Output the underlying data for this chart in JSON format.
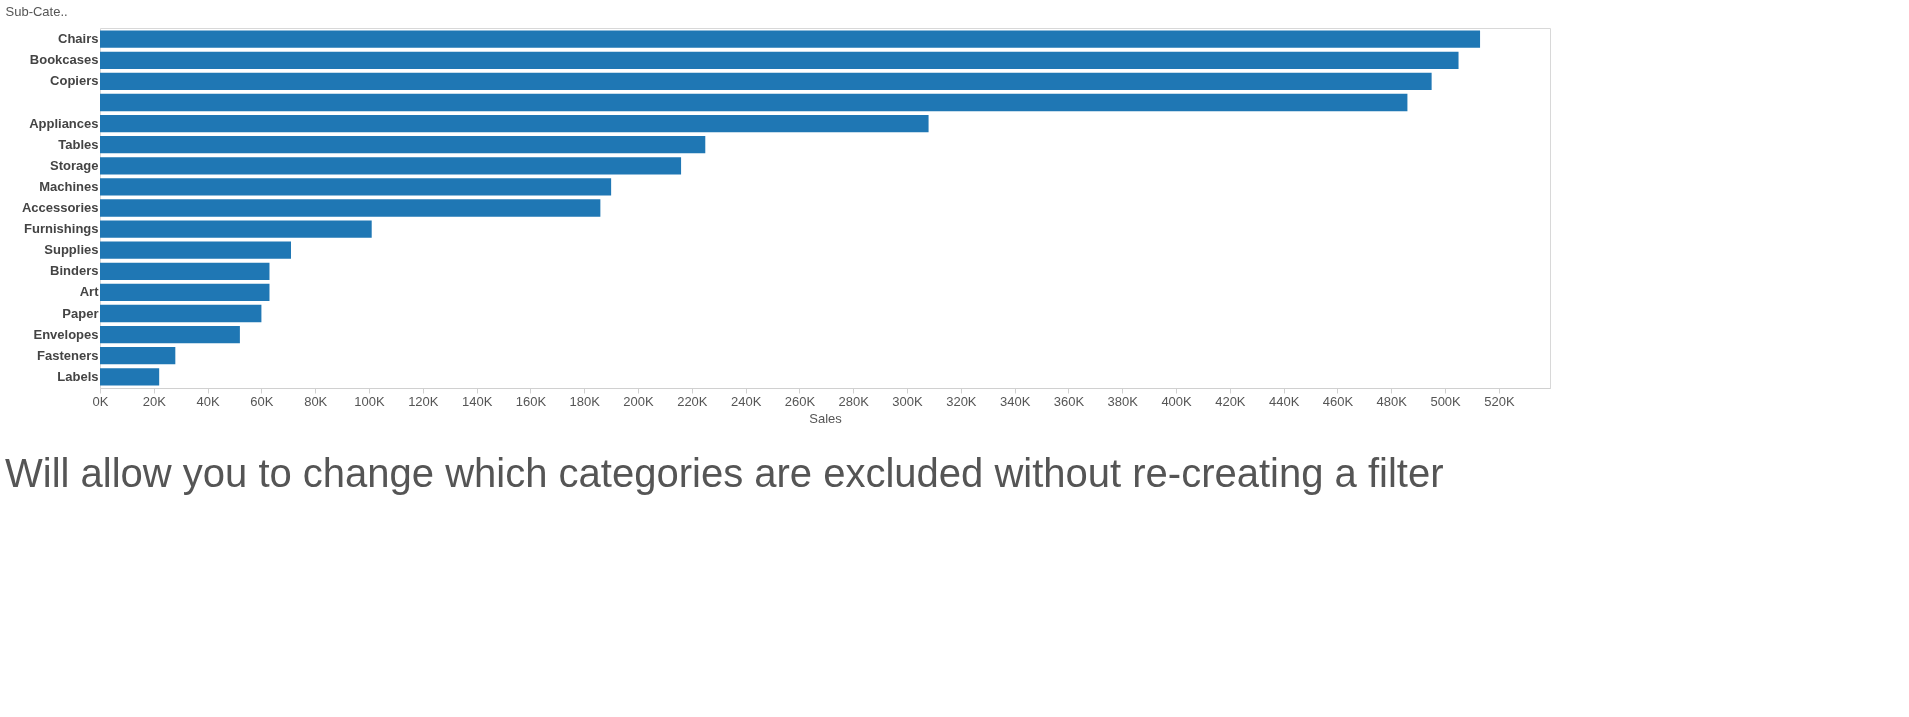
{
  "chart_data": {
    "type": "bar",
    "orientation": "horizontal",
    "xlabel": "Sales",
    "ylabel": "Sub-Cate..",
    "categories": [
      "Chairs",
      "Bookcases",
      "Copiers",
      null,
      "Appliances",
      "Tables",
      "Storage",
      "Machines",
      "Accessories",
      "Furnishings",
      "Supplies",
      "Binders",
      "Art",
      "Paper",
      "Envelopes",
      "Fasteners",
      "Labels"
    ],
    "values": [
      513000,
      505000,
      495000,
      486000,
      308000,
      225000,
      216000,
      190000,
      186000,
      101000,
      71000,
      63000,
      63000,
      60000,
      52000,
      28000,
      22000
    ],
    "color": "#1f77b4",
    "xlim": [
      0,
      539000
    ],
    "xticks": [
      {
        "value": 0,
        "label": "0K"
      },
      {
        "value": 20000,
        "label": "20K"
      },
      {
        "value": 40000,
        "label": "40K"
      },
      {
        "value": 60000,
        "label": "60K"
      },
      {
        "value": 80000,
        "label": "80K"
      },
      {
        "value": 100000,
        "label": "100K"
      },
      {
        "value": 120000,
        "label": "120K"
      },
      {
        "value": 140000,
        "label": "140K"
      },
      {
        "value": 160000,
        "label": "160K"
      },
      {
        "value": 180000,
        "label": "180K"
      },
      {
        "value": 200000,
        "label": "200K"
      },
      {
        "value": 220000,
        "label": "220K"
      },
      {
        "value": 240000,
        "label": "240K"
      },
      {
        "value": 260000,
        "label": "260K"
      },
      {
        "value": 280000,
        "label": "280K"
      },
      {
        "value": 300000,
        "label": "300K"
      },
      {
        "value": 320000,
        "label": "320K"
      },
      {
        "value": 340000,
        "label": "340K"
      },
      {
        "value": 360000,
        "label": "360K"
      },
      {
        "value": 380000,
        "label": "380K"
      },
      {
        "value": 400000,
        "label": "400K"
      },
      {
        "value": 420000,
        "label": "420K"
      },
      {
        "value": 440000,
        "label": "440K"
      },
      {
        "value": 460000,
        "label": "460K"
      },
      {
        "value": 480000,
        "label": "480K"
      },
      {
        "value": 500000,
        "label": "500K"
      },
      {
        "value": 520000,
        "label": "520K"
      }
    ],
    "grid": false,
    "annotations": [
      "Will allow you to change which categories are excluded without re-creating a filter"
    ]
  }
}
